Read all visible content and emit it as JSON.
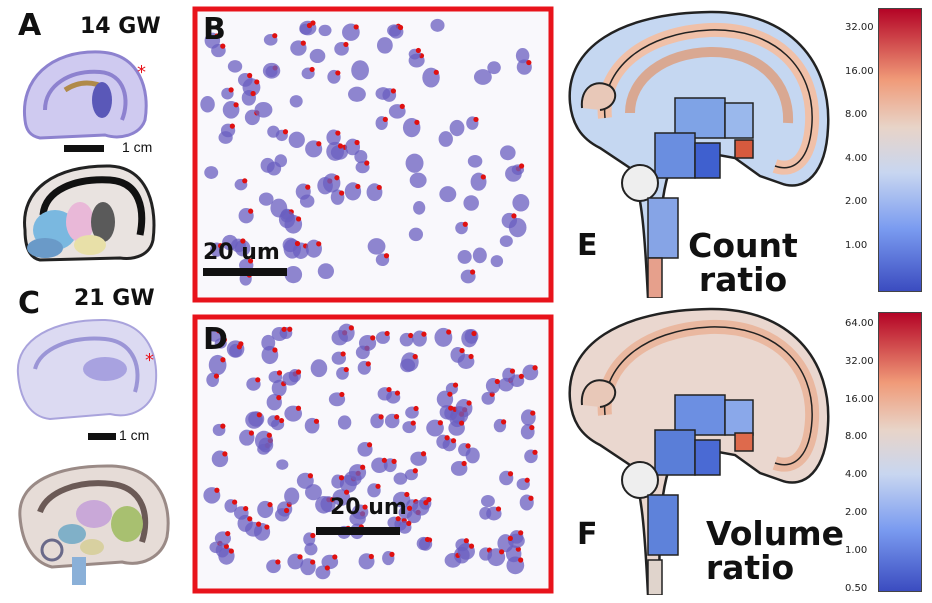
{
  "panels": {
    "A": {
      "letter": "A",
      "age": "14 GW",
      "scale": "1 cm"
    },
    "B": {
      "letter": "B",
      "scale": "20 um"
    },
    "C": {
      "letter": "C",
      "age": "21 GW",
      "scale": "1 cm"
    },
    "D": {
      "letter": "D",
      "scale": "20 um"
    },
    "E": {
      "letter": "E",
      "label_line1": "Count",
      "label_line2": "ratio",
      "colorbar_ticks": [
        "32.00",
        "16.00",
        "8.00",
        "4.00",
        "2.00",
        "1.00"
      ]
    },
    "F": {
      "letter": "F",
      "label_line1": "Volume",
      "label_line2": "ratio",
      "colorbar_ticks": [
        "64.00",
        "32.00",
        "16.00",
        "8.00",
        "4.00",
        "2.00",
        "1.00",
        "0.50"
      ]
    }
  },
  "colors": {
    "frame_red": "#e8131b",
    "cell_purple": "#5a4fb0",
    "dot_red": "#e01010",
    "cmap_low": "#3b4cc0",
    "cmap_mid": "#dddddd",
    "cmap_high": "#b40426"
  }
}
